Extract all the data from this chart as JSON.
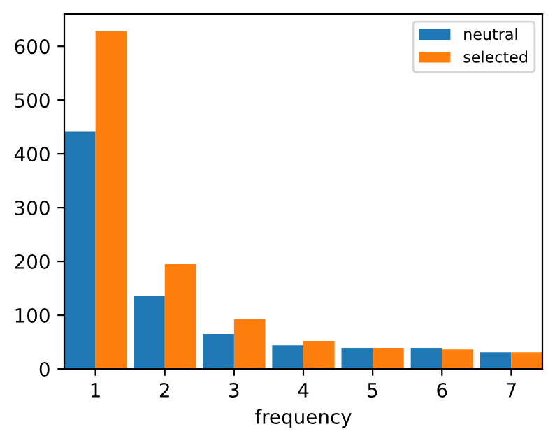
{
  "chart_data": {
    "type": "bar",
    "xlabel": "frequency",
    "categories": [
      "1",
      "2",
      "3",
      "4",
      "5",
      "6",
      "7"
    ],
    "series": [
      {
        "name": "neutral",
        "color": "#1f77b4",
        "values": [
          441,
          135,
          65,
          44,
          39,
          39,
          31
        ]
      },
      {
        "name": "selected",
        "color": "#ff7f0e",
        "values": [
          628,
          195,
          93,
          52,
          39,
          36,
          31
        ]
      }
    ],
    "ylim": [
      0,
      660
    ],
    "yticks": [
      0,
      100,
      200,
      300,
      400,
      500,
      600
    ],
    "legend": "top right",
    "grid": false
  }
}
